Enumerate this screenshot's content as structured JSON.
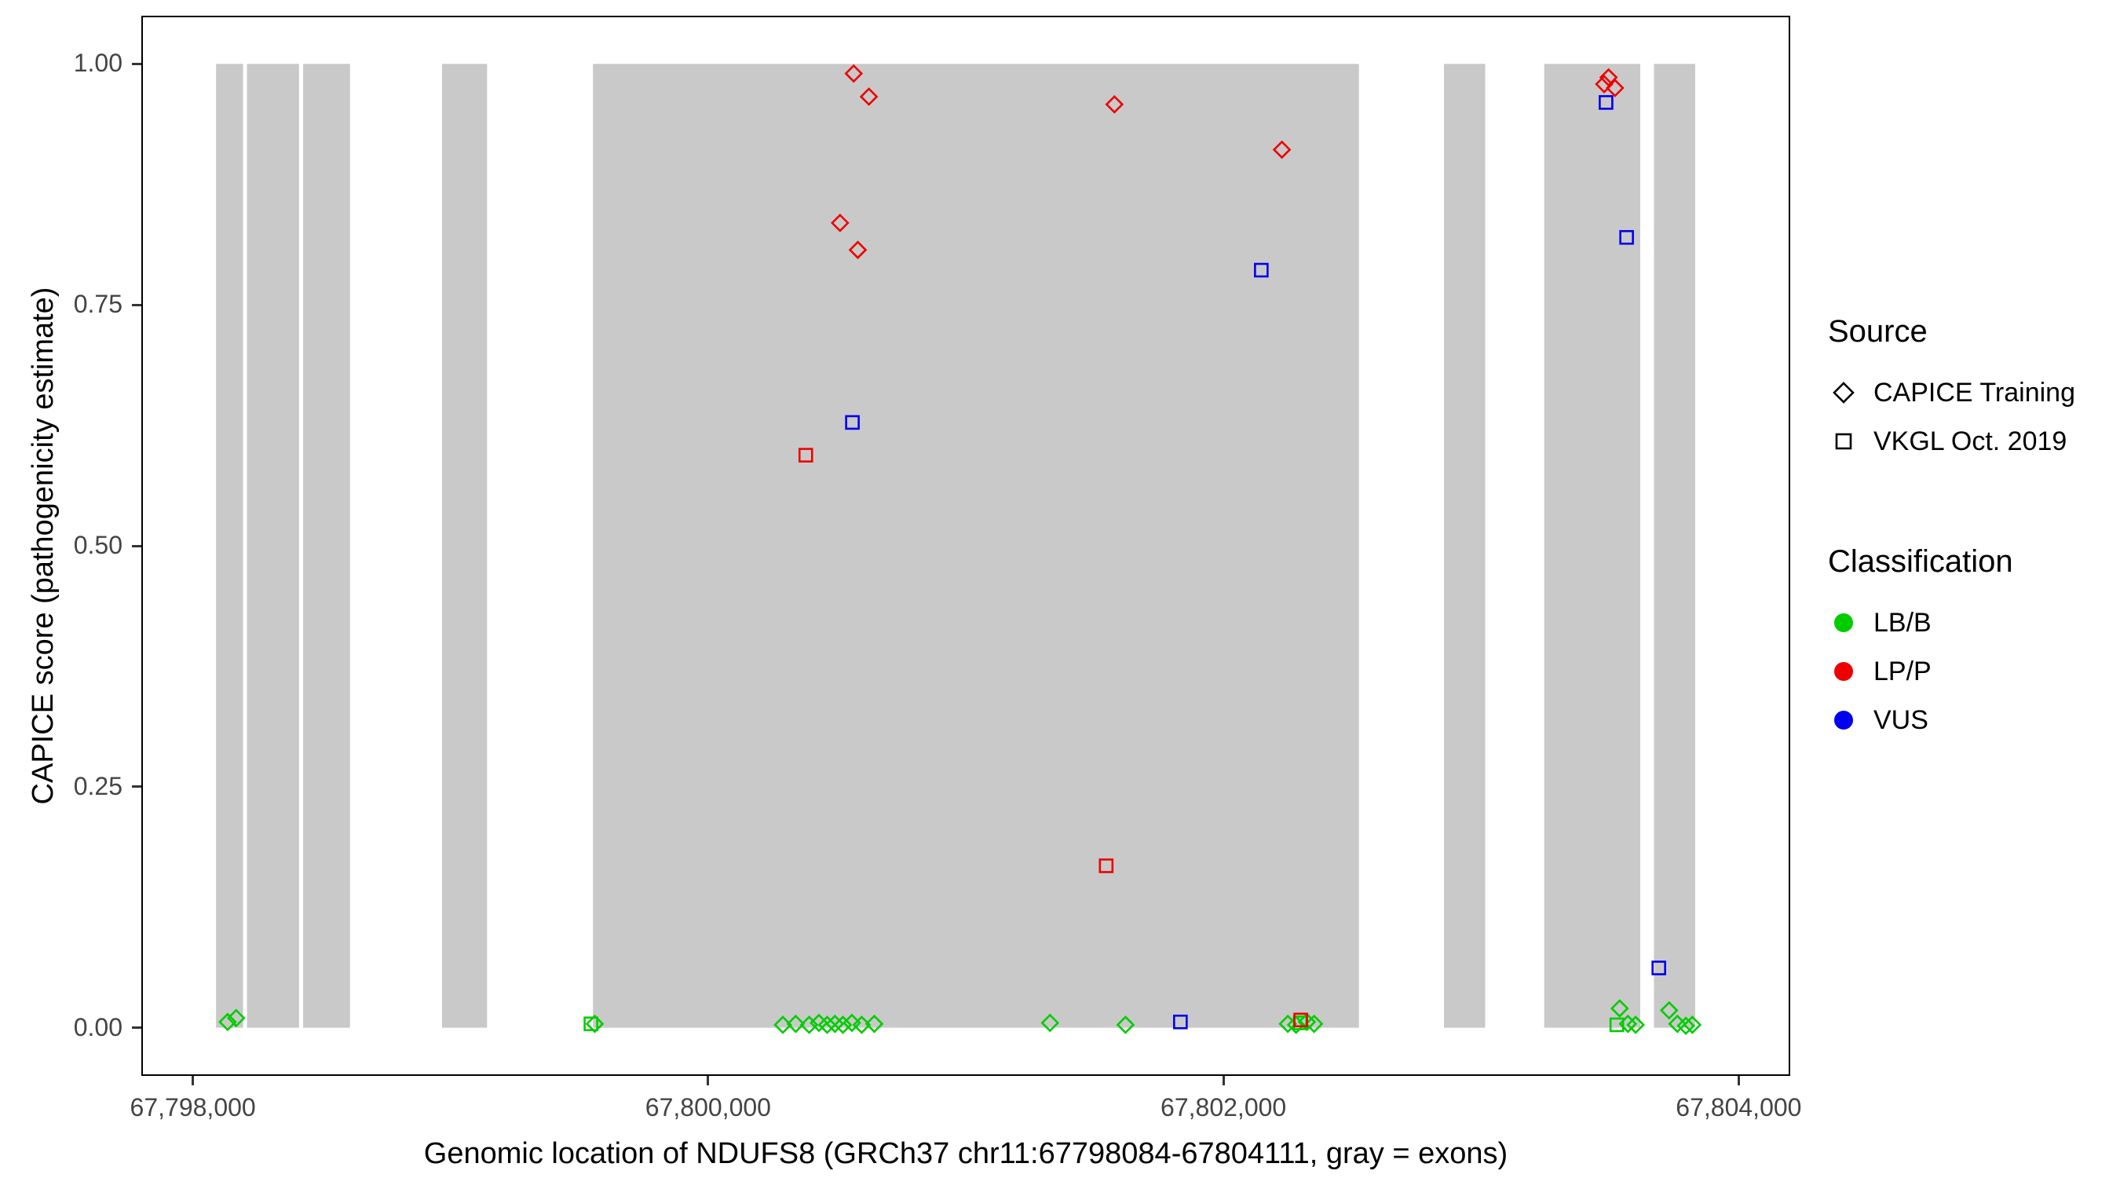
{
  "legend": {
    "source": {
      "title": "Source",
      "items": [
        {
          "label": "CAPICE Training",
          "marker": "diamond"
        },
        {
          "label": "VKGL Oct. 2019",
          "marker": "square"
        }
      ]
    },
    "classification": {
      "title": "Classification",
      "items": [
        {
          "label": "LB/B"
        },
        {
          "label": "LP/P"
        },
        {
          "label": "VUS"
        }
      ]
    }
  },
  "chart_data": {
    "type": "scatter",
    "title": "",
    "xlabel": "Genomic location of NDUFS8 (GRCh37 chr11:67798084-67804111, gray = exons)",
    "ylabel": "CAPICE score (pathogenicity estimate)",
    "xlim": [
      67797800,
      67804200
    ],
    "ylim": [
      -0.05,
      1.05
    ],
    "grid": false,
    "legend_position": "right",
    "exon_color": "#c9c9c9",
    "exons": [
      [
        67798090,
        67798195
      ],
      [
        67798210,
        67798412
      ],
      [
        67798428,
        67798610
      ],
      [
        67798967,
        67799142
      ],
      [
        67799553,
        67802526
      ],
      [
        67802856,
        67803016
      ],
      [
        67803245,
        67803618
      ],
      [
        67803671,
        67803831
      ]
    ],
    "xticks": [
      {
        "value": 67798000,
        "label": "67,798,000"
      },
      {
        "value": 67800000,
        "label": "67,800,000"
      },
      {
        "value": 67802000,
        "label": "67,802,000"
      },
      {
        "value": 67804000,
        "label": "67,804,000"
      }
    ],
    "yticks": [
      {
        "value": 0.0,
        "label": "0.00"
      },
      {
        "value": 0.25,
        "label": "0.25"
      },
      {
        "value": 0.5,
        "label": "0.50"
      },
      {
        "value": 0.75,
        "label": "0.75"
      },
      {
        "value": 1.0,
        "label": "1.00"
      }
    ],
    "marker_by_source": {
      "CAPICE Training": "diamond",
      "VKGL Oct. 2019": "square"
    },
    "color_by_classification": {
      "LB/B": "#00cc00",
      "LP/P": "#ee0000",
      "VUS": "#0000ee"
    },
    "points": [
      {
        "x": 67800565,
        "y": 0.99,
        "source": "CAPICE Training",
        "classification": "LP/P"
      },
      {
        "x": 67800624,
        "y": 0.966,
        "source": "CAPICE Training",
        "classification": "LP/P"
      },
      {
        "x": 67801577,
        "y": 0.958,
        "source": "CAPICE Training",
        "classification": "LP/P"
      },
      {
        "x": 67802227,
        "y": 0.911,
        "source": "CAPICE Training",
        "classification": "LP/P"
      },
      {
        "x": 67800512,
        "y": 0.835,
        "source": "CAPICE Training",
        "classification": "LP/P"
      },
      {
        "x": 67800581,
        "y": 0.807,
        "source": "CAPICE Training",
        "classification": "LP/P"
      },
      {
        "x": 67803495,
        "y": 0.986,
        "source": "CAPICE Training",
        "classification": "LP/P"
      },
      {
        "x": 67803520,
        "y": 0.975,
        "source": "CAPICE Training",
        "classification": "LP/P"
      },
      {
        "x": 67803478,
        "y": 0.979,
        "source": "CAPICE Training",
        "classification": "LP/P"
      },
      {
        "x": 67800379,
        "y": 0.594,
        "source": "VKGL Oct. 2019",
        "classification": "LP/P"
      },
      {
        "x": 67801545,
        "y": 0.168,
        "source": "VKGL Oct. 2019",
        "classification": "LP/P"
      },
      {
        "x": 67802300,
        "y": 0.008,
        "source": "VKGL Oct. 2019",
        "classification": "LP/P"
      },
      {
        "x": 67800560,
        "y": 0.628,
        "source": "VKGL Oct. 2019",
        "classification": "VUS"
      },
      {
        "x": 67802147,
        "y": 0.786,
        "source": "VKGL Oct. 2019",
        "classification": "VUS"
      },
      {
        "x": 67803485,
        "y": 0.96,
        "source": "VKGL Oct. 2019",
        "classification": "VUS"
      },
      {
        "x": 67803565,
        "y": 0.82,
        "source": "VKGL Oct. 2019",
        "classification": "VUS"
      },
      {
        "x": 67803690,
        "y": 0.062,
        "source": "VKGL Oct. 2019",
        "classification": "VUS"
      },
      {
        "x": 67801833,
        "y": 0.006,
        "source": "VKGL Oct. 2019",
        "classification": "VUS"
      },
      {
        "x": 67799545,
        "y": 0.004,
        "source": "VKGL Oct. 2019",
        "classification": "LB/B"
      },
      {
        "x": 67802298,
        "y": 0.005,
        "source": "VKGL Oct. 2019",
        "classification": "LB/B"
      },
      {
        "x": 67803527,
        "y": 0.003,
        "source": "VKGL Oct. 2019",
        "classification": "LB/B"
      },
      {
        "x": 67798135,
        "y": 0.006,
        "source": "CAPICE Training",
        "classification": "LB/B"
      },
      {
        "x": 67798168,
        "y": 0.01,
        "source": "CAPICE Training",
        "classification": "LB/B"
      },
      {
        "x": 67799560,
        "y": 0.004,
        "source": "CAPICE Training",
        "classification": "LB/B"
      },
      {
        "x": 67800290,
        "y": 0.003,
        "source": "CAPICE Training",
        "classification": "LB/B"
      },
      {
        "x": 67800340,
        "y": 0.004,
        "source": "CAPICE Training",
        "classification": "LB/B"
      },
      {
        "x": 67800392,
        "y": 0.003,
        "source": "CAPICE Training",
        "classification": "LB/B"
      },
      {
        "x": 67800430,
        "y": 0.005,
        "source": "CAPICE Training",
        "classification": "LB/B"
      },
      {
        "x": 67800462,
        "y": 0.003,
        "source": "CAPICE Training",
        "classification": "LB/B"
      },
      {
        "x": 67800492,
        "y": 0.004,
        "source": "CAPICE Training",
        "classification": "LB/B"
      },
      {
        "x": 67800523,
        "y": 0.003,
        "source": "CAPICE Training",
        "classification": "LB/B"
      },
      {
        "x": 67800558,
        "y": 0.005,
        "source": "CAPICE Training",
        "classification": "LB/B"
      },
      {
        "x": 67800596,
        "y": 0.003,
        "source": "CAPICE Training",
        "classification": "LB/B"
      },
      {
        "x": 67800645,
        "y": 0.004,
        "source": "CAPICE Training",
        "classification": "LB/B"
      },
      {
        "x": 67801327,
        "y": 0.005,
        "source": "CAPICE Training",
        "classification": "LB/B"
      },
      {
        "x": 67801620,
        "y": 0.003,
        "source": "CAPICE Training",
        "classification": "LB/B"
      },
      {
        "x": 67802250,
        "y": 0.004,
        "source": "CAPICE Training",
        "classification": "LB/B"
      },
      {
        "x": 67802282,
        "y": 0.003,
        "source": "CAPICE Training",
        "classification": "LB/B"
      },
      {
        "x": 67802324,
        "y": 0.006,
        "source": "CAPICE Training",
        "classification": "LB/B"
      },
      {
        "x": 67802352,
        "y": 0.004,
        "source": "CAPICE Training",
        "classification": "LB/B"
      },
      {
        "x": 67803538,
        "y": 0.02,
        "source": "CAPICE Training",
        "classification": "LB/B"
      },
      {
        "x": 67803570,
        "y": 0.004,
        "source": "CAPICE Training",
        "classification": "LB/B"
      },
      {
        "x": 67803600,
        "y": 0.003,
        "source": "CAPICE Training",
        "classification": "LB/B"
      },
      {
        "x": 67803730,
        "y": 0.018,
        "source": "CAPICE Training",
        "classification": "LB/B"
      },
      {
        "x": 67803762,
        "y": 0.004,
        "source": "CAPICE Training",
        "classification": "LB/B"
      },
      {
        "x": 67803795,
        "y": 0.002,
        "source": "CAPICE Training",
        "classification": "LB/B"
      },
      {
        "x": 67803820,
        "y": 0.003,
        "source": "CAPICE Training",
        "classification": "LB/B"
      }
    ]
  }
}
